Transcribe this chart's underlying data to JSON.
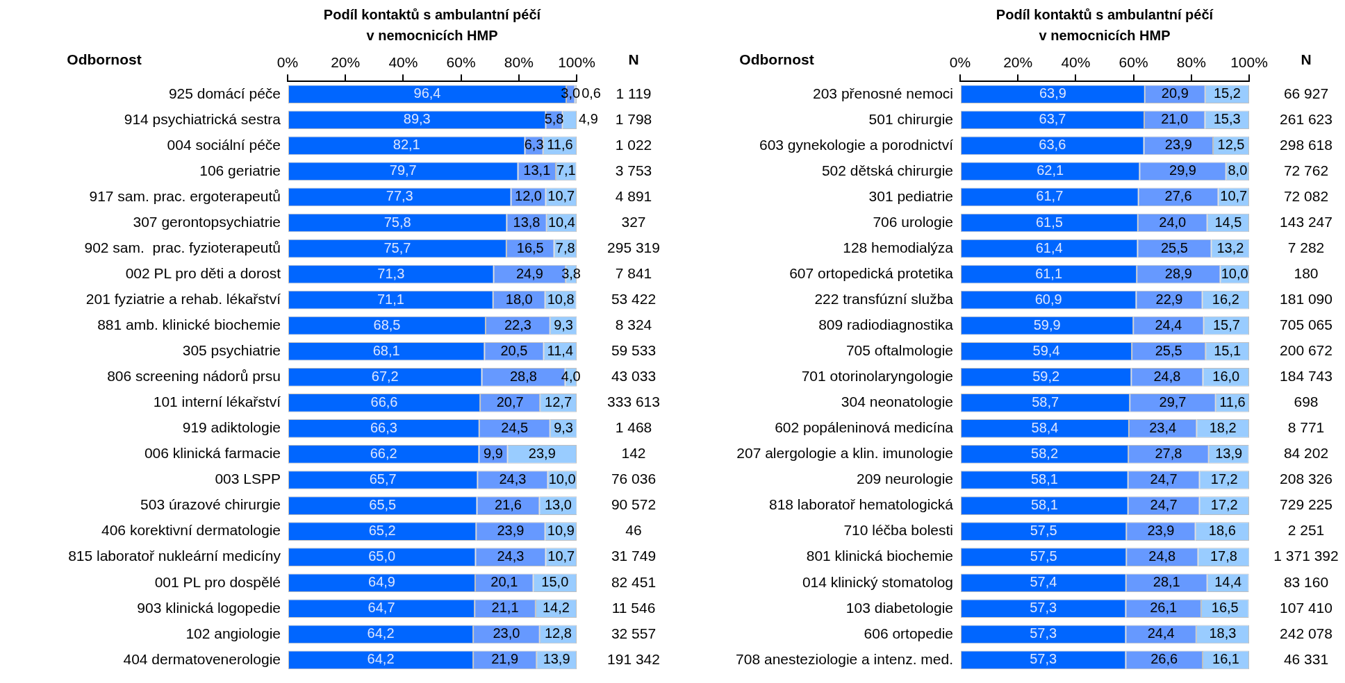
{
  "chart_data": [
    {
      "type": "bar",
      "orientation": "horizontal",
      "stacked": true,
      "title": "Podíl kontaktů s ambulantní péčí\nv nemocnicích HMP",
      "ylabel": "Odbornost",
      "y2label": "N",
      "xlim": [
        0,
        100
      ],
      "xticks": [
        {
          "value": 0,
          "label": "0%"
        },
        {
          "value": 20,
          "label": "20%"
        },
        {
          "value": 40,
          "label": "40%"
        },
        {
          "value": 60,
          "label": "60%"
        },
        {
          "value": 80,
          "label": "80%"
        },
        {
          "value": 100,
          "label": "100%"
        }
      ],
      "categories": [
        "925 domácí péče",
        "914 psychiatrická sestra",
        "004 sociální péče",
        "106 geriatrie",
        "917 sam. prac. ergoterapeutů",
        "307 gerontopsychiatrie",
        "902 sam.  prac. fyzioterapeutů",
        "002 PL pro děti a dorost",
        "201 fyziatrie a rehab. lékařství",
        "881 amb. klinické biochemie",
        "305 psychiatrie",
        "806 screening nádorů prsu",
        "101 interní lékařství",
        "919 adiktologie",
        "006 klinická farmacie",
        "003 LSPP",
        "503 úrazové chirurgie",
        "406 korektivní dermatologie",
        "815 laboratoř nukleární medicíny",
        "001 PL pro dospělé",
        "903 klinická logopedie",
        "102 angiologie",
        "404 dermatovenerologie"
      ],
      "series": [
        {
          "color": "#0066ff",
          "values": [
            96.4,
            89.3,
            82.1,
            79.7,
            77.3,
            75.8,
            75.7,
            71.3,
            71.1,
            68.5,
            68.1,
            67.2,
            66.6,
            66.3,
            66.2,
            65.7,
            65.5,
            65.2,
            65.0,
            64.9,
            64.7,
            64.2,
            64.2
          ],
          "value_labels": [
            "96,4",
            "89,3",
            "82,1",
            "79,7",
            "77,3",
            "75,8",
            "75,7",
            "71,3",
            "71,1",
            "68,5",
            "68,1",
            "67,2",
            "66,6",
            "66,3",
            "66,2",
            "65,7",
            "65,5",
            "65,2",
            "65,0",
            "64,9",
            "64,7",
            "64,2",
            "64,2"
          ]
        },
        {
          "color": "#6699ff",
          "values": [
            3.0,
            5.8,
            6.3,
            13.1,
            12.0,
            13.8,
            16.5,
            24.9,
            18.0,
            22.3,
            20.5,
            28.8,
            20.7,
            24.5,
            9.9,
            24.3,
            21.6,
            23.9,
            24.3,
            20.1,
            21.1,
            23.0,
            21.9
          ],
          "value_labels": [
            "3,0",
            "5,8",
            "6,3",
            "13,1",
            "12,0",
            "13,8",
            "16,5",
            "24,9",
            "18,0",
            "22,3",
            "20,5",
            "28,8",
            "20,7",
            "24,5",
            "9,9",
            "24,3",
            "21,6",
            "23,9",
            "24,3",
            "20,1",
            "21,1",
            "23,0",
            "21,9"
          ]
        },
        {
          "color": "#99ccff",
          "values": [
            0.6,
            4.9,
            11.6,
            7.1,
            10.7,
            10.4,
            7.8,
            3.8,
            10.8,
            9.3,
            11.4,
            4.0,
            12.7,
            9.3,
            23.9,
            10.0,
            13.0,
            10.9,
            10.7,
            15.0,
            14.2,
            12.8,
            13.9
          ],
          "value_labels": [
            "0,6",
            "4,9",
            "11,6",
            "7,1",
            "10,7",
            "10,4",
            "7,8",
            "3,8",
            "10,8",
            "9,3",
            "11,4",
            "4,0",
            "12,7",
            "9,3",
            "23,9",
            "10,0",
            "13,0",
            "10,9",
            "10,7",
            "15,0",
            "14,2",
            "12,8",
            "13,9"
          ]
        }
      ],
      "annotations": [
        "1 119",
        "1 798",
        "1 022",
        "3 753",
        "4 891",
        "327",
        "295 319",
        "7 841",
        "53 422",
        "8 324",
        "59 533",
        "43 033",
        "333 613",
        "1 468",
        "142",
        "76 036",
        "90 572",
        "46",
        "31 749",
        "82 451",
        "11 546",
        "32 557",
        "191 342"
      ]
    },
    {
      "type": "bar",
      "orientation": "horizontal",
      "stacked": true,
      "title": "Podíl kontaktů s ambulantní péčí\nv nemocnicích HMP",
      "ylabel": "Odbornost",
      "y2label": "N",
      "xlim": [
        0,
        100
      ],
      "xticks": [
        {
          "value": 0,
          "label": "0%"
        },
        {
          "value": 20,
          "label": "20%"
        },
        {
          "value": 40,
          "label": "40%"
        },
        {
          "value": 60,
          "label": "60%"
        },
        {
          "value": 80,
          "label": "80%"
        },
        {
          "value": 100,
          "label": "100%"
        }
      ],
      "categories": [
        "203 přenosné nemoci",
        "501 chirurgie",
        "603 gynekologie a porodnictví",
        "502 dětská chirurgie",
        "301 pediatrie",
        "706 urologie",
        "128 hemodialýza",
        "607 ortopedická protetika",
        "222 transfúzní služba",
        "809 radiodiagnostika",
        "705 oftalmologie",
        "701 otorinolaryngologie",
        "304 neonatologie",
        "602 popáleninová medicína",
        "207 alergologie a klin. imunologie",
        "209 neurologie",
        "818 laboratoř hematologická",
        "710 léčba bolesti",
        "801 klinická biochemie",
        "014 klinický stomatolog",
        "103 diabetologie",
        "606 ortopedie",
        "708 anesteziologie a intenz. med."
      ],
      "series": [
        {
          "color": "#0066ff",
          "values": [
            63.9,
            63.7,
            63.6,
            62.1,
            61.7,
            61.5,
            61.4,
            61.1,
            60.9,
            59.9,
            59.4,
            59.2,
            58.7,
            58.4,
            58.2,
            58.1,
            58.1,
            57.5,
            57.5,
            57.4,
            57.3,
            57.3,
            57.3
          ],
          "value_labels": [
            "63,9",
            "63,7",
            "63,6",
            "62,1",
            "61,7",
            "61,5",
            "61,4",
            "61,1",
            "60,9",
            "59,9",
            "59,4",
            "59,2",
            "58,7",
            "58,4",
            "58,2",
            "58,1",
            "58,1",
            "57,5",
            "57,5",
            "57,4",
            "57,3",
            "57,3",
            "57,3"
          ]
        },
        {
          "color": "#6699ff",
          "values": [
            20.9,
            21.0,
            23.9,
            29.9,
            27.6,
            24.0,
            25.5,
            28.9,
            22.9,
            24.4,
            25.5,
            24.8,
            29.7,
            23.4,
            27.8,
            24.7,
            24.7,
            23.9,
            24.8,
            28.1,
            26.1,
            24.4,
            26.6
          ],
          "value_labels": [
            "20,9",
            "21,0",
            "23,9",
            "29,9",
            "27,6",
            "24,0",
            "25,5",
            "28,9",
            "22,9",
            "24,4",
            "25,5",
            "24,8",
            "29,7",
            "23,4",
            "27,8",
            "24,7",
            "24,7",
            "23,9",
            "24,8",
            "28,1",
            "26,1",
            "24,4",
            "26,6"
          ]
        },
        {
          "color": "#99ccff",
          "values": [
            15.2,
            15.3,
            12.5,
            8.0,
            10.7,
            14.5,
            13.2,
            10.0,
            16.2,
            15.7,
            15.1,
            16.0,
            11.6,
            18.2,
            13.9,
            17.2,
            17.2,
            18.6,
            17.8,
            14.4,
            16.5,
            18.3,
            16.1
          ],
          "value_labels": [
            "15,2",
            "15,3",
            "12,5",
            "8,0",
            "10,7",
            "14,5",
            "13,2",
            "10,0",
            "16,2",
            "15,7",
            "15,1",
            "16,0",
            "11,6",
            "18,2",
            "13,9",
            "17,2",
            "17,2",
            "18,6",
            "17,8",
            "14,4",
            "16,5",
            "18,3",
            "16,1"
          ]
        }
      ],
      "annotations": [
        "66 927",
        "261 623",
        "298 618",
        "72 762",
        "72 082",
        "143 247",
        "7 282",
        "180",
        "181 090",
        "705 065",
        "200 672",
        "184 743",
        "698",
        "8 771",
        "84 202",
        "208 326",
        "729 225",
        "2 251",
        "1 371 392",
        "83 160",
        "107 410",
        "242 078",
        "46 331"
      ]
    }
  ]
}
